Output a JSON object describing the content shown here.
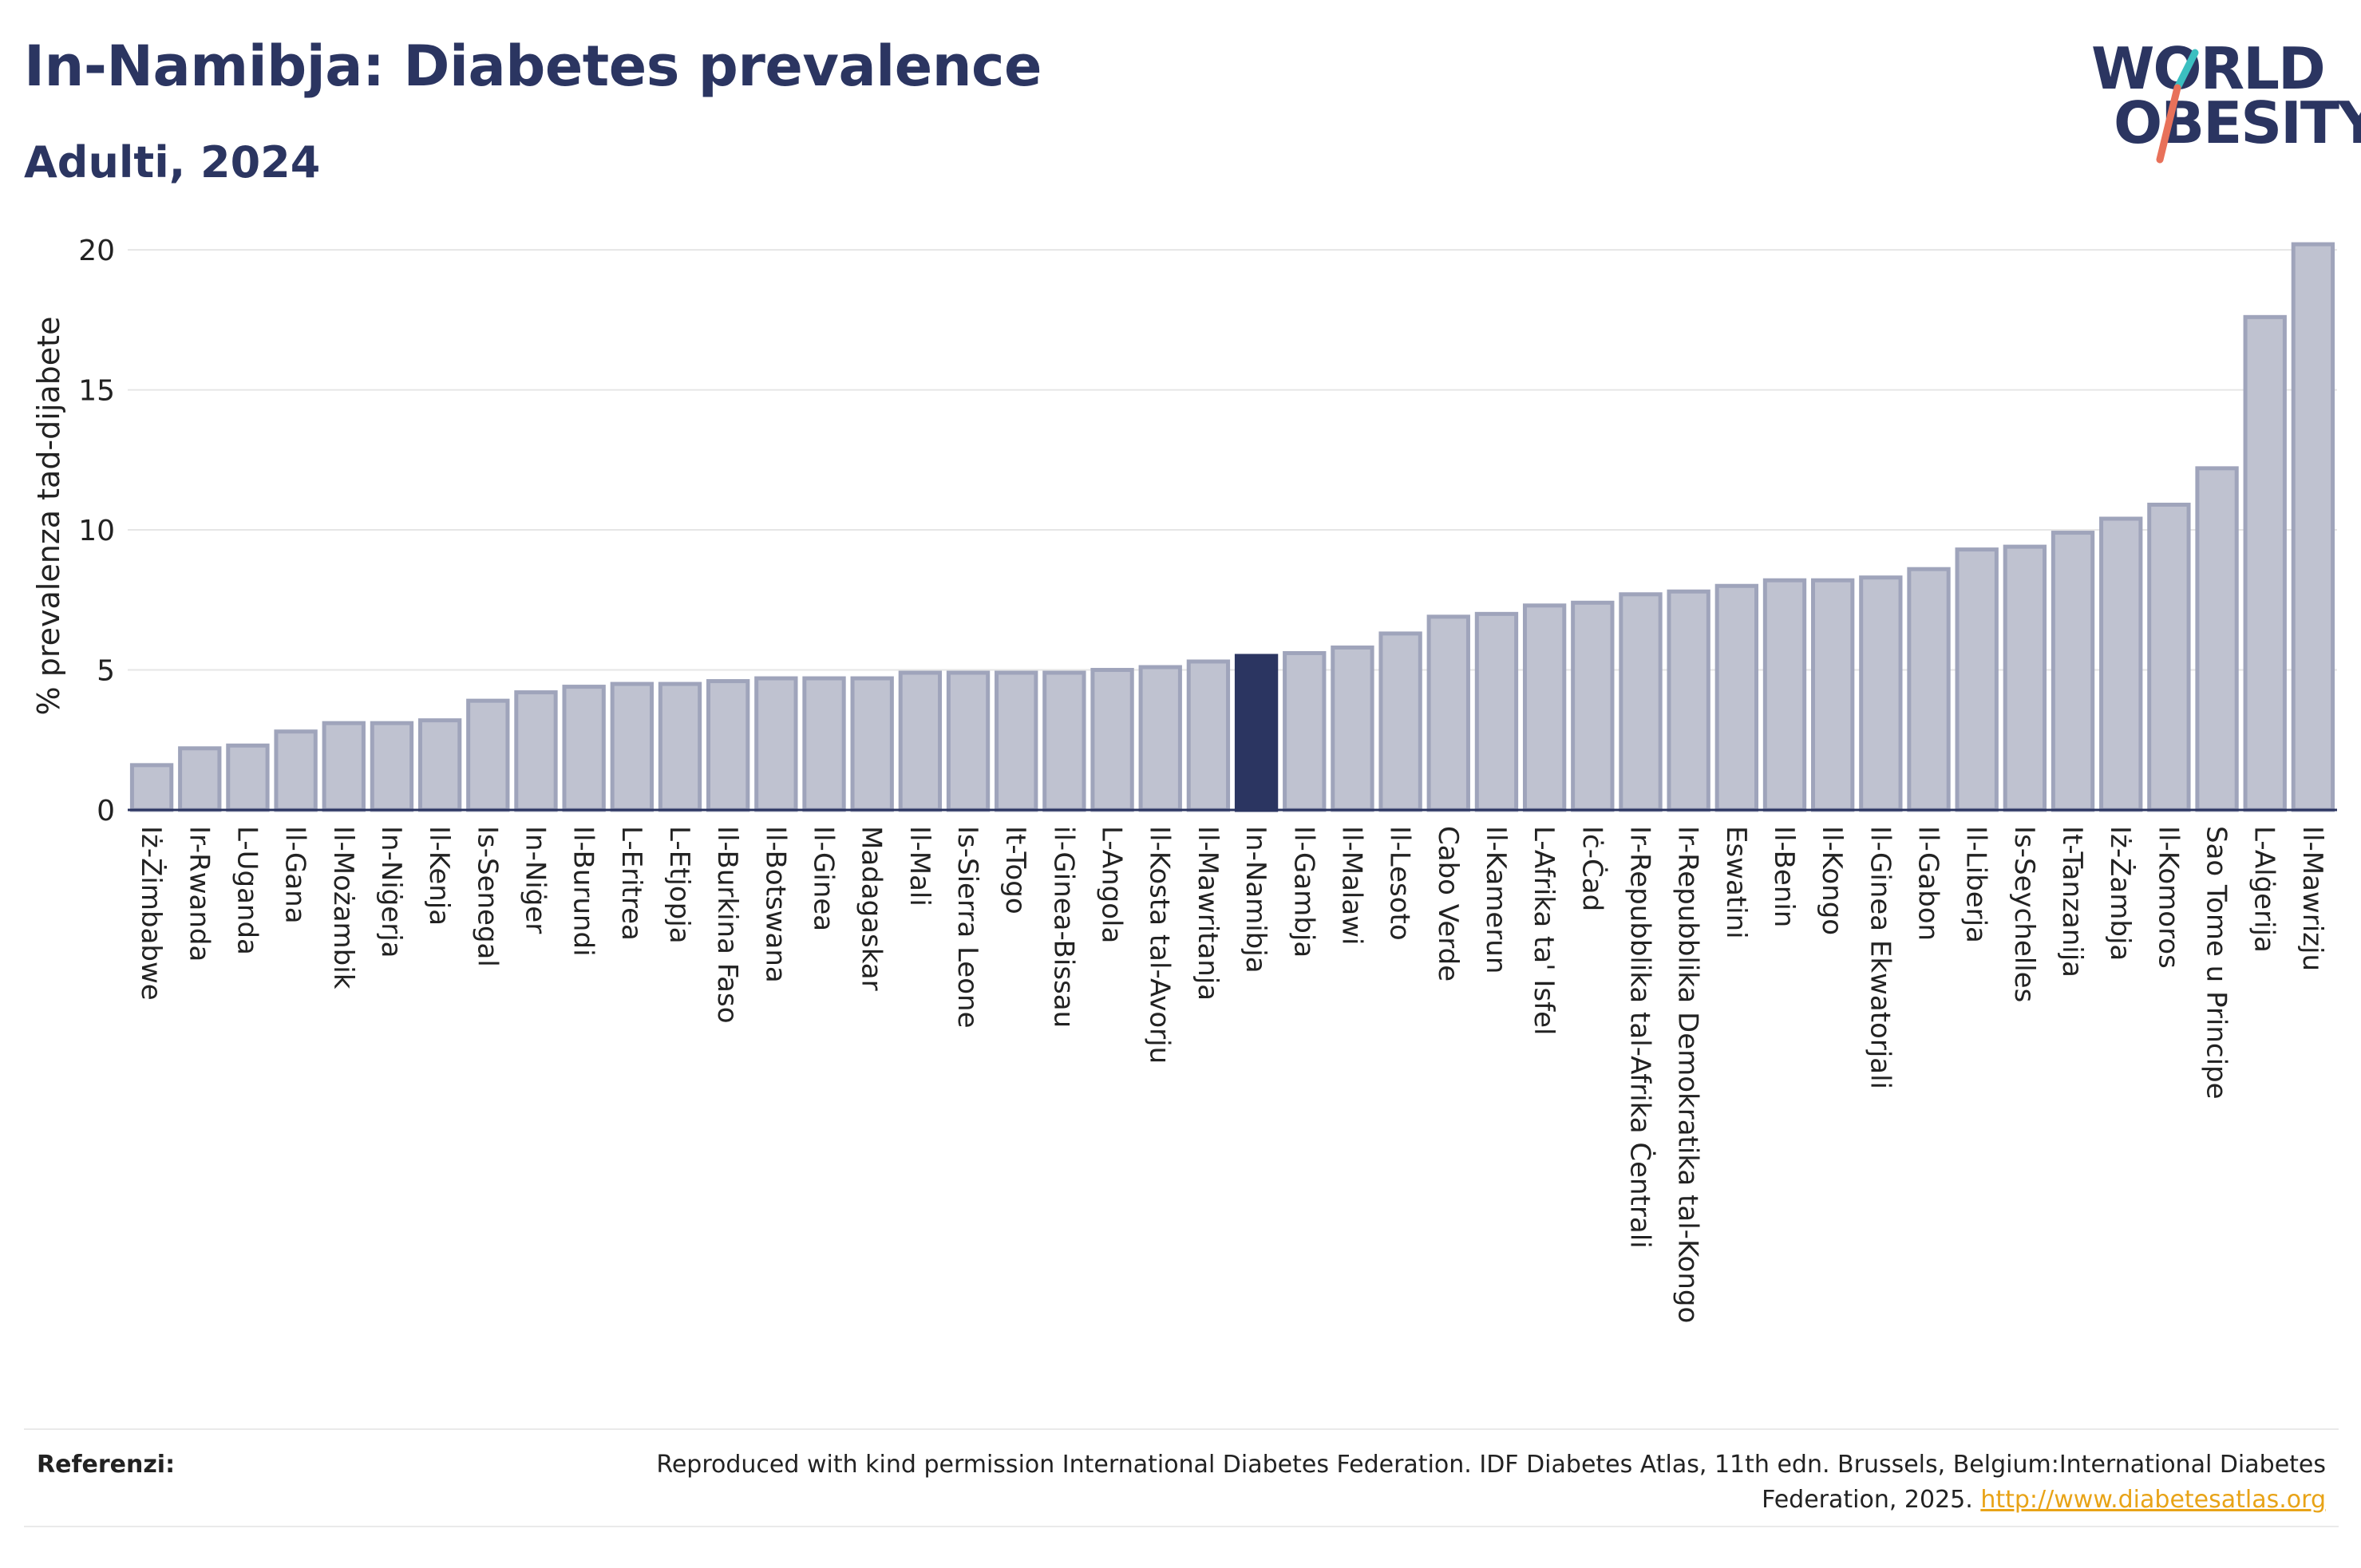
{
  "header": {
    "title": "In-Namibja: Diabetes prevalence",
    "subtitle": "Adulti, 2024"
  },
  "logo": {
    "line1": "WORLD",
    "line2": "OBESITY",
    "accent_teal": "#3bbfc0",
    "accent_coral": "#e8715a"
  },
  "colors": {
    "bar": "#bfc2d0",
    "bar_stroke": "#9fa4bb",
    "highlight": "#2b3561",
    "grid": "#e6e6e6",
    "text": "#2b3561"
  },
  "chart_data": {
    "type": "bar",
    "title": "In-Namibja: Diabetes prevalence",
    "subtitle": "Adulti, 2024",
    "ylabel": "% prevalenza tad-dijabete",
    "xlabel": "",
    "ylim": [
      0,
      21
    ],
    "yticks": [
      0,
      5,
      10,
      15,
      20
    ],
    "grid": true,
    "highlight": "In-Namibja",
    "categories": [
      "Iż-Żimbabwe",
      "Ir-Rwanda",
      "L-Uganda",
      "Il-Gana",
      "Il-Możambik",
      "In-Niġerja",
      "Il-Kenja",
      "Is-Senegal",
      "In-Niġer",
      "Il-Burundi",
      "L-Eritrea",
      "L-Etjopja",
      "Il-Burkina Faso",
      "Il-Botswana",
      "Il-Ginea",
      "Madagaskar",
      "Il-Mali",
      "Is-Sierra Leone",
      "It-Togo",
      "il-Ginea-Bissau",
      "L-Angola",
      "Il-Kosta tal-Avorju",
      "Il-Mawritanja",
      "In-Namibja",
      "Il-Gambja",
      "Il-Malawi",
      "Il-Lesoto",
      "Cabo Verde",
      "Il-Kamerun",
      "L-Afrika ta' Isfel",
      "Iċ-Ċad",
      "Ir-Repubblika tal-Afrika Ċentrali",
      "Ir-Repubblika Demokratika tal-Kongo",
      "Eswatini",
      "Il-Benin",
      "Il-Kongo",
      "Il-Ginea Ekwatorjali",
      "Il-Gabon",
      "Il-Liberja",
      "Is-Seychelles",
      "It-Tanzanija",
      "Iż-Żambja",
      "Il-Komoros",
      "Sao Tome u Principe",
      "L-Alġerija",
      "Il-Mawrizju"
    ],
    "values": [
      1.6,
      2.2,
      2.3,
      2.8,
      3.1,
      3.1,
      3.2,
      3.9,
      4.2,
      4.4,
      4.5,
      4.5,
      4.6,
      4.7,
      4.7,
      4.7,
      4.9,
      4.9,
      4.9,
      4.9,
      5.0,
      5.1,
      5.3,
      5.5,
      5.6,
      5.8,
      6.3,
      6.9,
      7.0,
      7.3,
      7.4,
      7.7,
      7.8,
      8.0,
      8.2,
      8.2,
      8.3,
      8.6,
      9.3,
      9.4,
      9.9,
      10.4,
      10.9,
      12.2,
      17.6,
      20.2
    ]
  },
  "footer": {
    "ref_label": "Referenzi:",
    "ref_text": "Reproduced with kind permission International Diabetes Federation. IDF Diabetes Atlas, 11th edn. Brussels, Belgium:International Diabetes Federation, 2025.",
    "ref_link": "http://www.diabetesatlas.org"
  }
}
